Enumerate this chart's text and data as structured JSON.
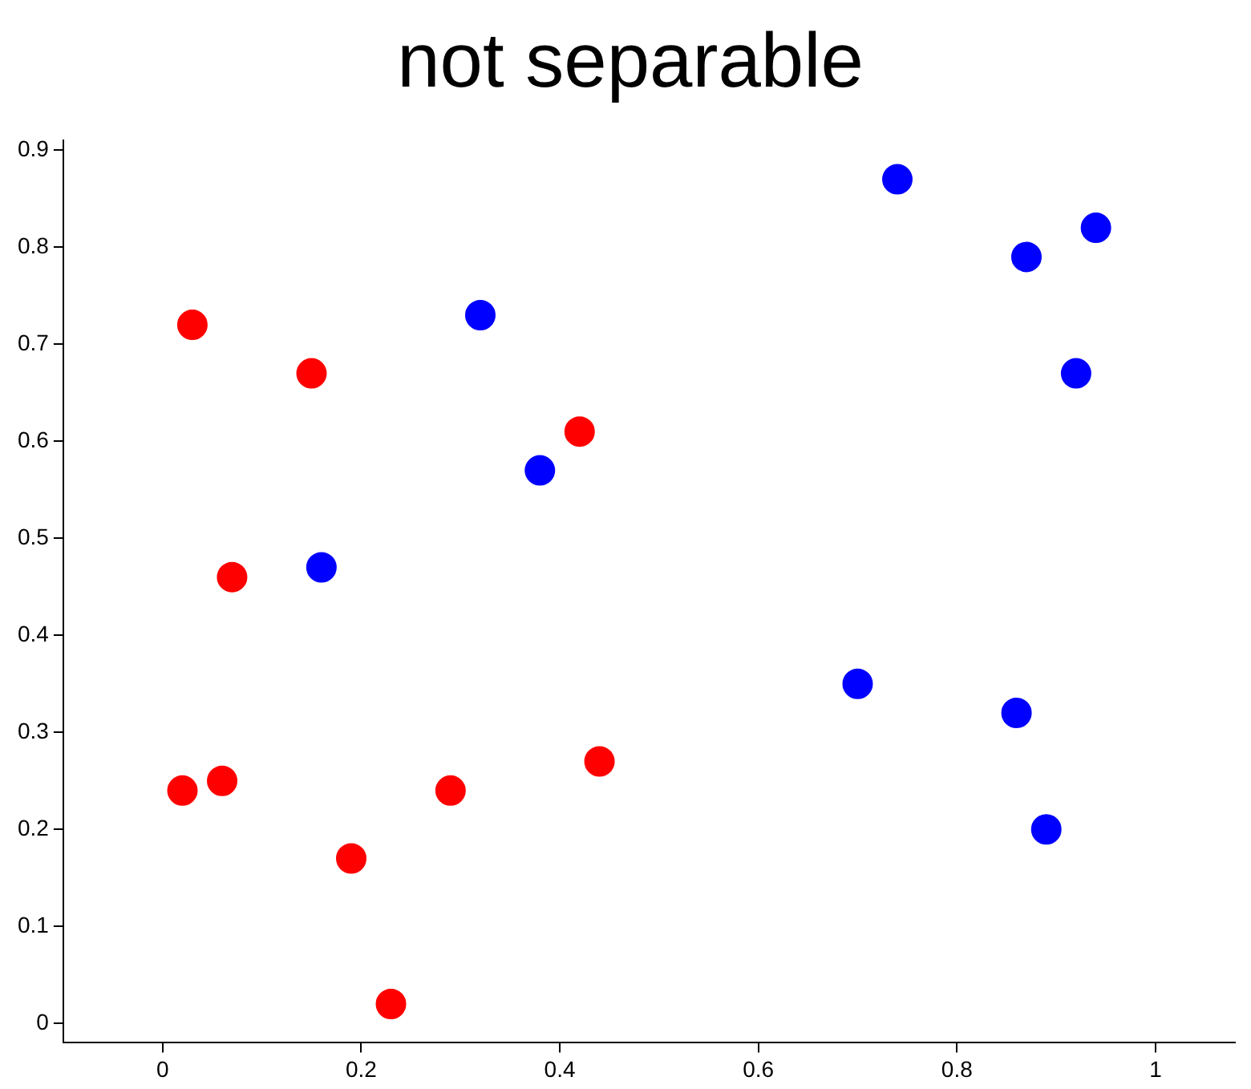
{
  "chart_data": {
    "type": "scatter",
    "title": "not separable",
    "xlim": [
      -0.1,
      1.08
    ],
    "ylim": [
      -0.02,
      0.91
    ],
    "xticks": [
      0,
      0.2,
      0.4,
      0.6,
      0.8,
      1
    ],
    "yticks": [
      0,
      0.1,
      0.2,
      0.3,
      0.4,
      0.5,
      0.6,
      0.7,
      0.8,
      0.9
    ],
    "grid": false,
    "legend": false,
    "marker": "circle",
    "series": [
      {
        "color": "#ff0000",
        "x": [
          0.03,
          0.15,
          0.42,
          0.07,
          0.02,
          0.06,
          0.19,
          0.29,
          0.44,
          0.23
        ],
        "values": [
          0.72,
          0.67,
          0.61,
          0.46,
          0.24,
          0.25,
          0.17,
          0.24,
          0.27,
          0.02
        ]
      },
      {
        "color": "#0000ff",
        "x": [
          0.74,
          0.87,
          0.94,
          0.92,
          0.32,
          0.38,
          0.16,
          0.7,
          0.86,
          0.89
        ],
        "values": [
          0.87,
          0.79,
          0.82,
          0.67,
          0.73,
          0.57,
          0.47,
          0.35,
          0.32,
          0.2
        ]
      }
    ]
  }
}
